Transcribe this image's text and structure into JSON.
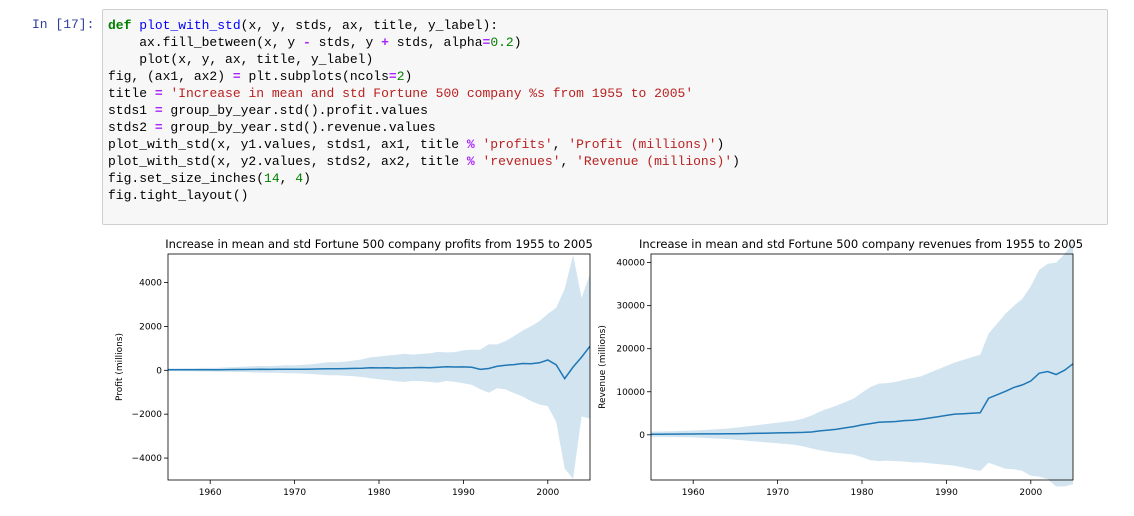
{
  "cell": {
    "prompt": "In  [17]:",
    "lines": [
      [
        {
          "t": "def ",
          "c": "kw"
        },
        {
          "t": "plot_with_std",
          "c": "fn"
        },
        {
          "t": "(x, y, stds, ax, title, y_label):"
        }
      ],
      [
        {
          "t": "    ax.fill_between(x, y "
        },
        {
          "t": "-",
          "c": "op"
        },
        {
          "t": " stds, y "
        },
        {
          "t": "+",
          "c": "op"
        },
        {
          "t": " stds, alpha"
        },
        {
          "t": "=",
          "c": "op"
        },
        {
          "t": "0.2",
          "c": "num"
        },
        {
          "t": ")"
        }
      ],
      [
        {
          "t": "    plot(x, y, ax, title, y_label)"
        }
      ],
      [
        {
          "t": "fig, (ax1, ax2) "
        },
        {
          "t": "=",
          "c": "op"
        },
        {
          "t": " plt.subplots(ncols"
        },
        {
          "t": "=",
          "c": "op"
        },
        {
          "t": "2",
          "c": "num"
        },
        {
          "t": ")"
        }
      ],
      [
        {
          "t": "title "
        },
        {
          "t": "=",
          "c": "op"
        },
        {
          "t": " "
        },
        {
          "t": "'Increase in mean and std Fortune 500 company %s from 1955 to 2005'",
          "c": "str"
        }
      ],
      [
        {
          "t": "stds1 "
        },
        {
          "t": "=",
          "c": "op"
        },
        {
          "t": " group_by_year.std().profit.values"
        }
      ],
      [
        {
          "t": "stds2 "
        },
        {
          "t": "=",
          "c": "op"
        },
        {
          "t": " group_by_year.std().revenue.values"
        }
      ],
      [
        {
          "t": "plot_with_std(x, y1.values, stds1, ax1, title "
        },
        {
          "t": "%",
          "c": "op"
        },
        {
          "t": " "
        },
        {
          "t": "'profits'",
          "c": "str"
        },
        {
          "t": ", "
        },
        {
          "t": "'Profit (millions)'",
          "c": "str"
        },
        {
          "t": ")"
        }
      ],
      [
        {
          "t": "plot_with_std(x, y2.values, stds2, ax2, title "
        },
        {
          "t": "%",
          "c": "op"
        },
        {
          "t": " "
        },
        {
          "t": "'revenues'",
          "c": "str"
        },
        {
          "t": ", "
        },
        {
          "t": "'Revenue (millions)'",
          "c": "str"
        },
        {
          "t": ")"
        }
      ],
      [
        {
          "t": "fig.set_size_inches("
        },
        {
          "t": "14",
          "c": "num"
        },
        {
          "t": ", "
        },
        {
          "t": "4",
          "c": "num"
        },
        {
          "t": ")"
        }
      ],
      [
        {
          "t": "fig.tight_layout()"
        }
      ]
    ]
  },
  "colors": {
    "line": "#1f77b4",
    "fill": "#1f77b4",
    "fill_alpha": 0.2
  },
  "chart_data": [
    {
      "type": "line",
      "title": "Increase in mean and std Fortune 500 company profits from 1955 to 2005",
      "xlabel": "",
      "ylabel": "Profit (millions)",
      "xlim": [
        1955,
        2005
      ],
      "ylim": [
        -5000,
        5300
      ],
      "xticks": [
        1960,
        1970,
        1980,
        1990,
        2000
      ],
      "yticks": [
        -4000,
        -2000,
        0,
        2000,
        4000
      ],
      "x": [
        1955,
        1956,
        1957,
        1958,
        1959,
        1960,
        1961,
        1962,
        1963,
        1964,
        1965,
        1966,
        1967,
        1968,
        1969,
        1970,
        1971,
        1972,
        1973,
        1974,
        1975,
        1976,
        1977,
        1978,
        1979,
        1980,
        1981,
        1982,
        1983,
        1984,
        1985,
        1986,
        1987,
        1988,
        1989,
        1990,
        1991,
        1992,
        1993,
        1994,
        1995,
        1996,
        1997,
        1998,
        1999,
        2000,
        2001,
        2002,
        2003,
        2004,
        2005
      ],
      "series": [
        {
          "mean": [
            25,
            25,
            27,
            24,
            27,
            27,
            28,
            31,
            34,
            37,
            42,
            45,
            42,
            44,
            48,
            45,
            47,
            53,
            65,
            72,
            70,
            75,
            87,
            95,
            115,
            110,
            113,
            100,
            110,
            115,
            128,
            120,
            140,
            165,
            150,
            155,
            135,
            40,
            80,
            180,
            230,
            260,
            310,
            300,
            340,
            470,
            250,
            -380,
            150,
            600,
            1100
          ],
          "std": [
            60,
            60,
            70,
            70,
            80,
            80,
            90,
            100,
            110,
            120,
            140,
            150,
            150,
            160,
            180,
            180,
            200,
            220,
            260,
            300,
            300,
            320,
            360,
            400,
            480,
            520,
            560,
            600,
            640,
            600,
            620,
            650,
            700,
            650,
            680,
            750,
            800,
            900,
            1100,
            1000,
            1100,
            1300,
            1500,
            1700,
            1900,
            2100,
            2600,
            4100,
            5100,
            2700,
            3300
          ]
        }
      ]
    },
    {
      "type": "line",
      "title": "Increase in mean and std Fortune 500 company revenues from 1955 to 2005",
      "xlabel": "",
      "ylabel": "Revenue (millions)",
      "xlim": [
        1955,
        2005
      ],
      "ylim": [
        -10500,
        42000
      ],
      "xticks": [
        1960,
        1970,
        1980,
        1990,
        2000
      ],
      "yticks": [
        0,
        10000,
        20000,
        30000,
        40000
      ],
      "x": [
        1955,
        1956,
        1957,
        1958,
        1959,
        1960,
        1961,
        1962,
        1963,
        1964,
        1965,
        1966,
        1967,
        1968,
        1969,
        1970,
        1971,
        1972,
        1973,
        1974,
        1975,
        1976,
        1977,
        1978,
        1979,
        1980,
        1981,
        1982,
        1983,
        1984,
        1985,
        1986,
        1987,
        1988,
        1989,
        1990,
        1991,
        1992,
        1993,
        1994,
        1995,
        1996,
        1997,
        1998,
        1999,
        2000,
        2001,
        2002,
        2003,
        2004,
        2005
      ],
      "series": [
        {
          "mean": [
            150,
            150,
            160,
            170,
            180,
            190,
            200,
            210,
            220,
            230,
            260,
            290,
            320,
            350,
            390,
            430,
            470,
            500,
            560,
            650,
            900,
            1100,
            1300,
            1600,
            1900,
            2300,
            2600,
            2900,
            3000,
            3100,
            3300,
            3400,
            3600,
            3900,
            4200,
            4500,
            4800,
            4900,
            5000,
            5100,
            8500,
            9300,
            10100,
            11000,
            11600,
            12500,
            14300,
            14700,
            14000,
            15000,
            16500
          ],
          "std": [
            600,
            620,
            650,
            700,
            750,
            800,
            900,
            1000,
            1100,
            1200,
            1400,
            1600,
            1800,
            2000,
            2200,
            2400,
            2600,
            2800,
            3200,
            3800,
            4500,
            5000,
            5500,
            6000,
            6500,
            7500,
            8500,
            9000,
            9000,
            9200,
            9500,
            9800,
            10000,
            10500,
            11000,
            11500,
            12000,
            12500,
            13000,
            13500,
            15000,
            16500,
            18000,
            19000,
            20000,
            22000,
            24000,
            25000,
            26000,
            27000,
            28000
          ]
        }
      ]
    }
  ]
}
